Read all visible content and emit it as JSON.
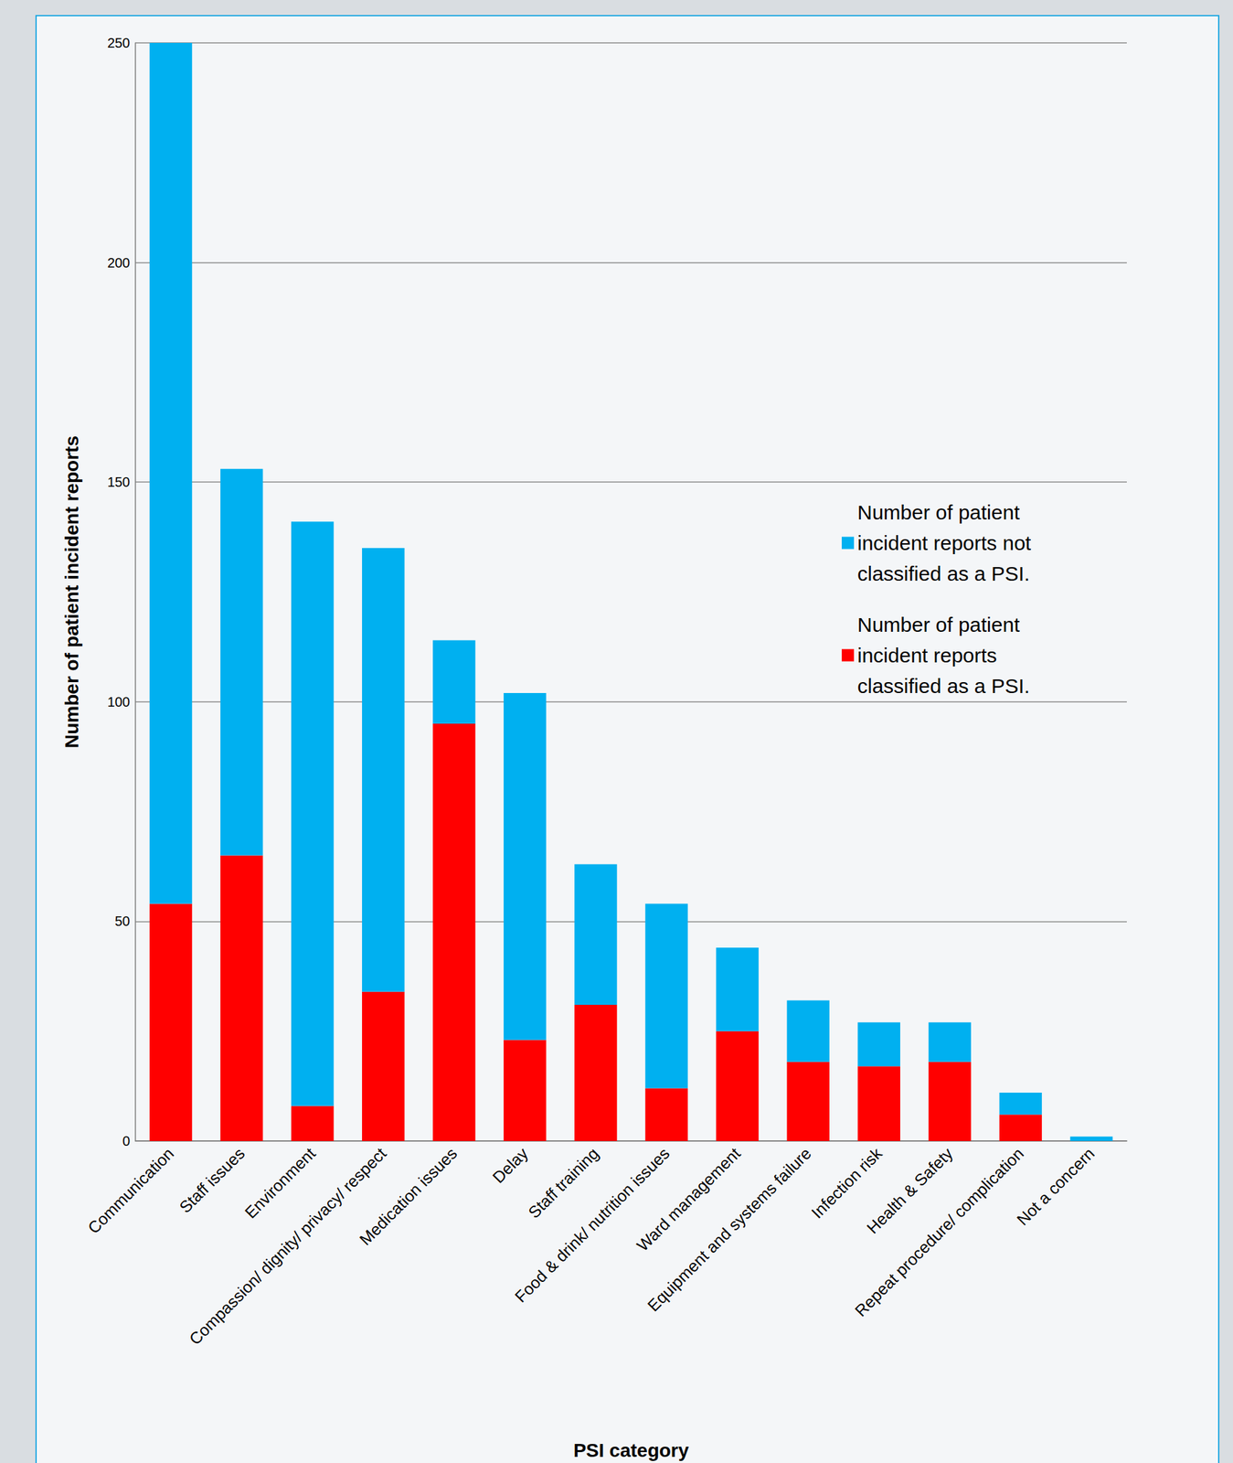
{
  "chart_data": {
    "type": "bar",
    "stacked": true,
    "x_label": "PSI category",
    "y_label": "Number of patient incident reports",
    "categories": [
      "Communication",
      "Staff issues",
      "Environment",
      "Compassion/ dignity/ privacy/ respect",
      "Medication issues",
      "Delay",
      "Staff training",
      "Food & drink/ nutrition issues",
      "Ward management",
      "Equipment and systems failure",
      "Infection risk",
      "Health & Safety",
      "Repeat procedure/ complication",
      "Not a concern"
    ],
    "series": [
      {
        "name": "Number of patient incident reports classified as a PSI.",
        "color": "#ff0000",
        "values": [
          54,
          65,
          8,
          34,
          95,
          23,
          31,
          12,
          25,
          18,
          17,
          18,
          6,
          0
        ]
      },
      {
        "name": "Number of patient incident reports not classified as a PSI.",
        "color": "#00b0f0",
        "values": [
          196,
          88,
          133,
          101,
          19,
          79,
          32,
          42,
          19,
          14,
          10,
          9,
          5,
          1
        ]
      }
    ],
    "ylim": [
      0,
      250
    ],
    "yticks": [
      0,
      50,
      100,
      150,
      200,
      250
    ],
    "grid": true,
    "legend": "right"
  }
}
